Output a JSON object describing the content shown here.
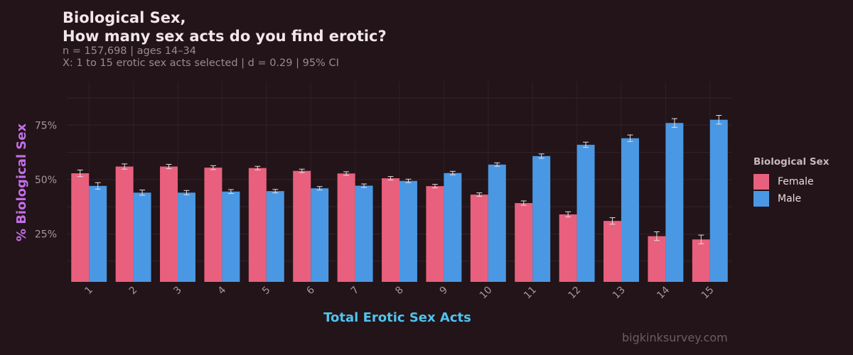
{
  "chart_data": {
    "type": "bar",
    "title_line1": "Biological Sex,",
    "title_line2": "How many sex acts do you find erotic?",
    "subtitle_line1": "n = 157,698  |  ages 14–34",
    "subtitle_line2": "X: 1 to 15 erotic sex acts selected  |  d = 0.29  |  95% CI",
    "xlabel": "Total Erotic Sex Acts",
    "ylabel": "% Biological Sex",
    "categories": [
      "1",
      "2",
      "3",
      "4",
      "5",
      "6",
      "7",
      "8",
      "9",
      "10",
      "11",
      "12",
      "13",
      "14",
      "15"
    ],
    "y_ticks": [
      {
        "value": 25,
        "label": "25%"
      },
      {
        "value": 50,
        "label": "50%"
      },
      {
        "value": 75,
        "label": "75%"
      }
    ],
    "ylim": [
      3,
      95
    ],
    "grid": true,
    "legend_title": "Biological Sex",
    "legend_position": "right",
    "series": [
      {
        "name": "Female",
        "color": "#e8607d",
        "values": [
          52.9,
          56.0,
          56.0,
          55.5,
          55.3,
          54.0,
          52.8,
          50.6,
          47.0,
          43.1,
          39.2,
          34.0,
          31.0,
          24.0,
          22.5
        ],
        "ci": [
          1.5,
          1.2,
          1.0,
          0.9,
          0.8,
          0.8,
          0.8,
          0.8,
          0.8,
          0.8,
          1.0,
          1.2,
          1.5,
          2.0,
          2.0
        ]
      },
      {
        "name": "Male",
        "color": "#4a98e4",
        "values": [
          47.1,
          44.0,
          44.0,
          44.5,
          44.7,
          46.0,
          47.2,
          49.4,
          53.0,
          56.9,
          60.8,
          66.0,
          69.0,
          76.0,
          77.5
        ],
        "ci": [
          1.5,
          1.2,
          1.0,
          0.9,
          0.8,
          0.8,
          0.8,
          0.8,
          0.8,
          0.8,
          1.0,
          1.2,
          1.5,
          2.0,
          2.0
        ]
      }
    ]
  },
  "watermark": "bigkinksurvey.com"
}
